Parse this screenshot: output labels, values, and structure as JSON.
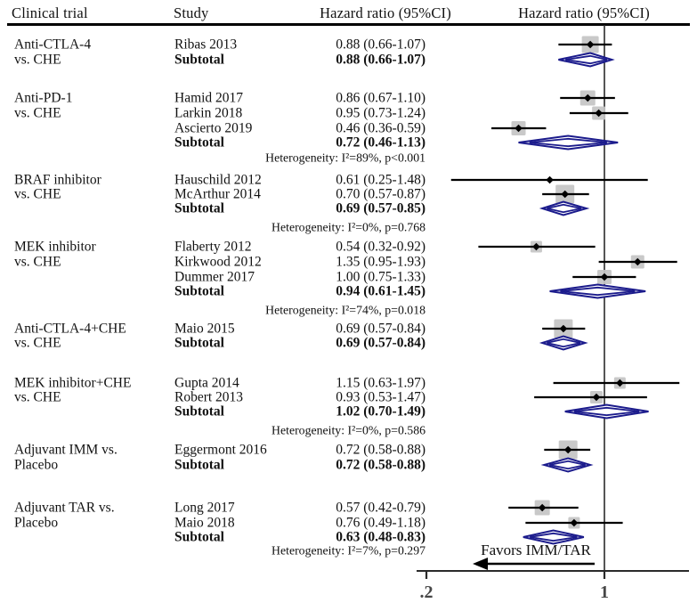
{
  "header": {
    "col_clinical_trial": "Clinical trial",
    "col_study": "Study",
    "col_hazard_text": "Hazard ratio (95%CI)",
    "col_hazard_plot": "Hazard ratio (95%CI)"
  },
  "favors_label": "Favors IMM/TAR",
  "colors": {
    "diamond": "#1b1b8c",
    "weight_square": "#c4c4c4",
    "ci_line": "#000000",
    "axis_line": "#2b2b2b",
    "tick_label": "#474747",
    "text": "#111111"
  },
  "chart_data": {
    "type": "forest",
    "effect_measure": "Hazard ratio (95%CI)",
    "x_scale": "log",
    "ref_line": 1,
    "axis_ticks": [
      {
        "value": 0.2,
        "label": ".2"
      },
      {
        "value": 1,
        "label": "1"
      }
    ],
    "groups": [
      {
        "trial_lines": [
          "Anti-CTLA-4",
          "vs. CHE"
        ],
        "studies": [
          {
            "name": "Ribas 2013",
            "text": "0.88 (0.66-1.07)",
            "hr": 0.88,
            "lo": 0.66,
            "hi": 1.07,
            "size": 19
          }
        ],
        "subtotal": {
          "label": "Subtotal",
          "text": "0.88 (0.66-1.07)",
          "hr": 0.88,
          "lo": 0.66,
          "hi": 1.07
        },
        "heterogeneity": null
      },
      {
        "trial_lines": [
          "Anti-PD-1",
          "vs. CHE"
        ],
        "studies": [
          {
            "name": "Hamid 2017",
            "text": "0.86 (0.67-1.10)",
            "hr": 0.86,
            "lo": 0.67,
            "hi": 1.1,
            "size": 17
          },
          {
            "name": "Larkin 2018",
            "text": "0.95 (0.73-1.24)",
            "hr": 0.95,
            "lo": 0.73,
            "hi": 1.24,
            "size": 15
          },
          {
            "name": "Ascierto 2019",
            "text": "0.46 (0.36-0.59)",
            "hr": 0.46,
            "lo": 0.36,
            "hi": 0.59,
            "size": 16
          }
        ],
        "subtotal": {
          "label": "Subtotal",
          "text": "0.72 (0.46-1.13)",
          "hr": 0.72,
          "lo": 0.46,
          "hi": 1.13
        },
        "heterogeneity": "Heterogeneity: I²=89%, p<0.001"
      },
      {
        "trial_lines": [
          "BRAF inhibitor",
          "vs. CHE"
        ],
        "studies": [
          {
            "name": "Hauschild 2012",
            "text": "0.61 (0.25-1.48)",
            "hr": 0.61,
            "lo": 0.25,
            "hi": 1.48,
            "size": 0
          },
          {
            "name": "McArthur 2014",
            "text": "0.70 (0.57-0.87)",
            "hr": 0.7,
            "lo": 0.57,
            "hi": 0.87,
            "size": 21
          }
        ],
        "subtotal": {
          "label": "Subtotal",
          "text": "0.69 (0.57-0.85)",
          "hr": 0.69,
          "lo": 0.57,
          "hi": 0.85
        },
        "heterogeneity": "Heterogeneity: I²=0%, p=0.768"
      },
      {
        "trial_lines": [
          "MEK inhibitor",
          "vs. CHE"
        ],
        "studies": [
          {
            "name": "Flaberty 2012",
            "text": "0.54 (0.32-0.92)",
            "hr": 0.54,
            "lo": 0.32,
            "hi": 0.92,
            "size": 13
          },
          {
            "name": "Kirkwood 2012",
            "text": "1.35 (0.95-1.93)",
            "hr": 1.35,
            "lo": 0.95,
            "hi": 1.93,
            "size": 15
          },
          {
            "name": "Dummer 2017",
            "text": "1.00 (0.75-1.33)",
            "hr": 1.0,
            "lo": 0.75,
            "hi": 1.33,
            "size": 16
          }
        ],
        "subtotal": {
          "label": "Subtotal",
          "text": "0.94 (0.61-1.45)",
          "hr": 0.94,
          "lo": 0.61,
          "hi": 1.45
        },
        "heterogeneity": "Heterogeneity: I²=74%, p=0.018"
      },
      {
        "trial_lines": [
          "Anti-CTLA-4+CHE",
          "vs. CHE"
        ],
        "studies": [
          {
            "name": "Maio 2015",
            "text": "0.69 (0.57-0.84)",
            "hr": 0.69,
            "lo": 0.57,
            "hi": 0.84,
            "size": 21
          }
        ],
        "subtotal": {
          "label": "Subtotal",
          "text": "0.69 (0.57-0.84)",
          "hr": 0.69,
          "lo": 0.57,
          "hi": 0.84
        },
        "heterogeneity": null
      },
      {
        "trial_lines": [
          "MEK inhibitor+CHE",
          "vs. CHE"
        ],
        "studies": [
          {
            "name": "Gupta 2014",
            "text": "1.15 (0.63-1.97)",
            "hr": 1.15,
            "lo": 0.63,
            "hi": 1.97,
            "size": 13
          },
          {
            "name": "Robert 2013",
            "text": "0.93 (0.53-1.47)",
            "hr": 0.93,
            "lo": 0.53,
            "hi": 1.47,
            "size": 14
          }
        ],
        "subtotal": {
          "label": "Subtotal",
          "text": "1.02 (0.70-1.49)",
          "hr": 1.02,
          "lo": 0.7,
          "hi": 1.49
        },
        "heterogeneity": "Heterogeneity: I²=0%, p=0.586"
      },
      {
        "trial_lines": [
          "Adjuvant IMM vs.",
          "Placebo"
        ],
        "studies": [
          {
            "name": "Eggermont 2016",
            "text": "0.72 (0.58-0.88)",
            "hr": 0.72,
            "lo": 0.58,
            "hi": 0.88,
            "size": 21
          }
        ],
        "subtotal": {
          "label": "Subtotal",
          "text": "0.72 (0.58-0.88)",
          "hr": 0.72,
          "lo": 0.58,
          "hi": 0.88
        },
        "heterogeneity": null
      },
      {
        "trial_lines": [
          "Adjuvant TAR vs.",
          "Placebo"
        ],
        "studies": [
          {
            "name": "Long 2017",
            "text": "0.57 (0.42-0.79)",
            "hr": 0.57,
            "lo": 0.42,
            "hi": 0.79,
            "size": 17
          },
          {
            "name": "Maio 2018",
            "text": "0.76 (0.49-1.18)",
            "hr": 0.76,
            "lo": 0.49,
            "hi": 1.18,
            "size": 13
          }
        ],
        "subtotal": {
          "label": "Subtotal",
          "text": "0.63 (0.48-0.83)",
          "hr": 0.63,
          "lo": 0.48,
          "hi": 0.83
        },
        "heterogeneity": "Heterogeneity: I²=7%, p=0.297"
      }
    ]
  }
}
